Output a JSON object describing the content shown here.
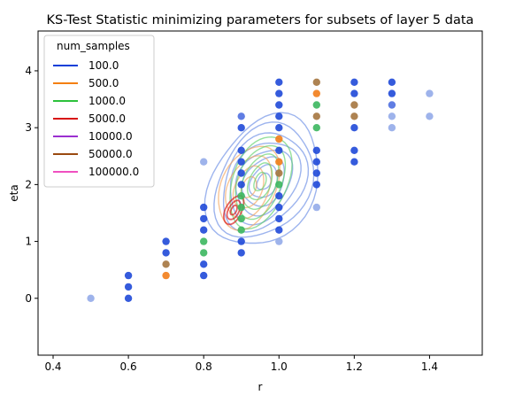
{
  "chart_data": {
    "type": "scatter",
    "title": "KS-Test Statistic minimizing parameters for subsets of layer 5 data",
    "xlabel": "r",
    "ylabel": "eta",
    "xlim": [
      0.36,
      1.54
    ],
    "ylim": [
      -1.0,
      4.7
    ],
    "x_ticks": [
      "0.4",
      "0.6",
      "0.8",
      "1.0",
      "1.2",
      "1.4"
    ],
    "y_ticks": [
      "0",
      "1",
      "2",
      "3",
      "4"
    ],
    "grid": false,
    "legend": {
      "title": "num_samples",
      "placement": "top-left",
      "entries": [
        {
          "label": "100.0",
          "color": "#0a3fd8"
        },
        {
          "label": "500.0",
          "color": "#f47f0e"
        },
        {
          "label": "1000.0",
          "color": "#2cc13b"
        },
        {
          "label": "5000.0",
          "color": "#d81010"
        },
        {
          "label": "10000.0",
          "color": "#9b2fd0"
        },
        {
          "label": "50000.0",
          "color": "#9a4a10"
        },
        {
          "label": "100000.0",
          "color": "#f050c0"
        }
      ]
    },
    "points": [
      {
        "x": 0.5,
        "y": 0.0,
        "color": "#93abe9"
      },
      {
        "x": 0.6,
        "y": 0.0,
        "color": "#1f49d8"
      },
      {
        "x": 0.6,
        "y": 0.2,
        "color": "#1f49d8"
      },
      {
        "x": 0.6,
        "y": 0.4,
        "color": "#1f49d8"
      },
      {
        "x": 0.7,
        "y": 0.4,
        "color": "#f27d1a"
      },
      {
        "x": 0.7,
        "y": 0.6,
        "color": "#a5763f"
      },
      {
        "x": 0.7,
        "y": 0.8,
        "color": "#1f49d8"
      },
      {
        "x": 0.7,
        "y": 1.0,
        "color": "#1f49d8"
      },
      {
        "x": 0.8,
        "y": 0.4,
        "color": "#1f49d8"
      },
      {
        "x": 0.8,
        "y": 0.6,
        "color": "#1f49d8"
      },
      {
        "x": 0.8,
        "y": 0.8,
        "color": "#3cb75f"
      },
      {
        "x": 0.8,
        "y": 1.0,
        "color": "#3cb75f"
      },
      {
        "x": 0.8,
        "y": 1.2,
        "color": "#1f49d8"
      },
      {
        "x": 0.8,
        "y": 1.4,
        "color": "#1f49d8"
      },
      {
        "x": 0.8,
        "y": 1.6,
        "color": "#1f49d8"
      },
      {
        "x": 0.8,
        "y": 2.4,
        "color": "#93abe9"
      },
      {
        "x": 0.9,
        "y": 0.8,
        "color": "#1f49d8"
      },
      {
        "x": 0.9,
        "y": 1.0,
        "color": "#1f49d8"
      },
      {
        "x": 0.9,
        "y": 1.2,
        "color": "#3cb75f"
      },
      {
        "x": 0.9,
        "y": 1.4,
        "color": "#3cb75f"
      },
      {
        "x": 0.9,
        "y": 1.6,
        "color": "#3cb75f"
      },
      {
        "x": 0.9,
        "y": 1.8,
        "color": "#3cb75f"
      },
      {
        "x": 0.9,
        "y": 2.0,
        "color": "#1f49d8"
      },
      {
        "x": 0.9,
        "y": 2.2,
        "color": "#1f49d8"
      },
      {
        "x": 0.9,
        "y": 2.4,
        "color": "#1f49d8"
      },
      {
        "x": 0.9,
        "y": 2.6,
        "color": "#1f49d8"
      },
      {
        "x": 0.9,
        "y": 3.0,
        "color": "#1f49d8"
      },
      {
        "x": 0.9,
        "y": 3.2,
        "color": "#4f6fe0"
      },
      {
        "x": 1.0,
        "y": 1.0,
        "color": "#93abe9"
      },
      {
        "x": 1.0,
        "y": 1.2,
        "color": "#1f49d8"
      },
      {
        "x": 1.0,
        "y": 1.4,
        "color": "#1f49d8"
      },
      {
        "x": 1.0,
        "y": 1.6,
        "color": "#1f49d8"
      },
      {
        "x": 1.0,
        "y": 1.8,
        "color": "#1f49d8"
      },
      {
        "x": 1.0,
        "y": 2.0,
        "color": "#3cb75f"
      },
      {
        "x": 1.0,
        "y": 2.2,
        "color": "#a5763f"
      },
      {
        "x": 1.0,
        "y": 2.4,
        "color": "#f27d1a"
      },
      {
        "x": 1.0,
        "y": 2.6,
        "color": "#1f49d8"
      },
      {
        "x": 1.0,
        "y": 2.8,
        "color": "#f27d1a"
      },
      {
        "x": 1.0,
        "y": 3.0,
        "color": "#1f49d8"
      },
      {
        "x": 1.0,
        "y": 3.2,
        "color": "#1f49d8"
      },
      {
        "x": 1.0,
        "y": 3.4,
        "color": "#1f49d8"
      },
      {
        "x": 1.0,
        "y": 3.6,
        "color": "#1f49d8"
      },
      {
        "x": 1.0,
        "y": 3.8,
        "color": "#1f49d8"
      },
      {
        "x": 1.1,
        "y": 1.6,
        "color": "#93abe9"
      },
      {
        "x": 1.1,
        "y": 2.0,
        "color": "#1f49d8"
      },
      {
        "x": 1.1,
        "y": 2.2,
        "color": "#1f49d8"
      },
      {
        "x": 1.1,
        "y": 2.4,
        "color": "#1f49d8"
      },
      {
        "x": 1.1,
        "y": 2.6,
        "color": "#1f49d8"
      },
      {
        "x": 1.1,
        "y": 3.0,
        "color": "#3cb75f"
      },
      {
        "x": 1.1,
        "y": 3.2,
        "color": "#a5763f"
      },
      {
        "x": 1.1,
        "y": 3.4,
        "color": "#3cb75f"
      },
      {
        "x": 1.1,
        "y": 3.6,
        "color": "#f27d1a"
      },
      {
        "x": 1.1,
        "y": 3.8,
        "color": "#a5763f"
      },
      {
        "x": 1.2,
        "y": 2.4,
        "color": "#1f49d8"
      },
      {
        "x": 1.2,
        "y": 2.6,
        "color": "#1f49d8"
      },
      {
        "x": 1.2,
        "y": 3.0,
        "color": "#1f49d8"
      },
      {
        "x": 1.2,
        "y": 3.2,
        "color": "#a5763f"
      },
      {
        "x": 1.2,
        "y": 3.4,
        "color": "#a5763f"
      },
      {
        "x": 1.2,
        "y": 3.6,
        "color": "#1f49d8"
      },
      {
        "x": 1.2,
        "y": 3.8,
        "color": "#1f49d8"
      },
      {
        "x": 1.3,
        "y": 3.0,
        "color": "#93abe9"
      },
      {
        "x": 1.3,
        "y": 3.2,
        "color": "#93abe9"
      },
      {
        "x": 1.3,
        "y": 3.4,
        "color": "#4f6fe0"
      },
      {
        "x": 1.3,
        "y": 3.6,
        "color": "#1f49d8"
      },
      {
        "x": 1.3,
        "y": 3.8,
        "color": "#1f49d8"
      },
      {
        "x": 1.4,
        "y": 3.2,
        "color": "#93abe9"
      },
      {
        "x": 1.4,
        "y": 3.6,
        "color": "#93abe9"
      }
    ],
    "density_contours": [
      {
        "series": "100.0",
        "color": "#7c9be8",
        "levels": 8,
        "center": [
          0.96,
          2.05
        ],
        "spread": [
          0.3,
          2.4
        ],
        "angle_deg": 73
      },
      {
        "series": "500.0",
        "color": "#f5a55a",
        "levels": 4,
        "center": [
          0.92,
          1.95
        ],
        "spread": [
          0.16,
          1.55
        ],
        "angle_deg": 72
      },
      {
        "series": "1000.0",
        "color": "#5dd06a",
        "levels": 5,
        "center": [
          0.95,
          2.05
        ],
        "spread": [
          0.16,
          1.7
        ],
        "angle_deg": 72
      },
      {
        "series": "5000.0",
        "color": "#d81010",
        "levels": 3,
        "center": [
          0.88,
          1.55
        ],
        "spread": [
          0.05,
          0.55
        ],
        "angle_deg": 66
      }
    ]
  }
}
